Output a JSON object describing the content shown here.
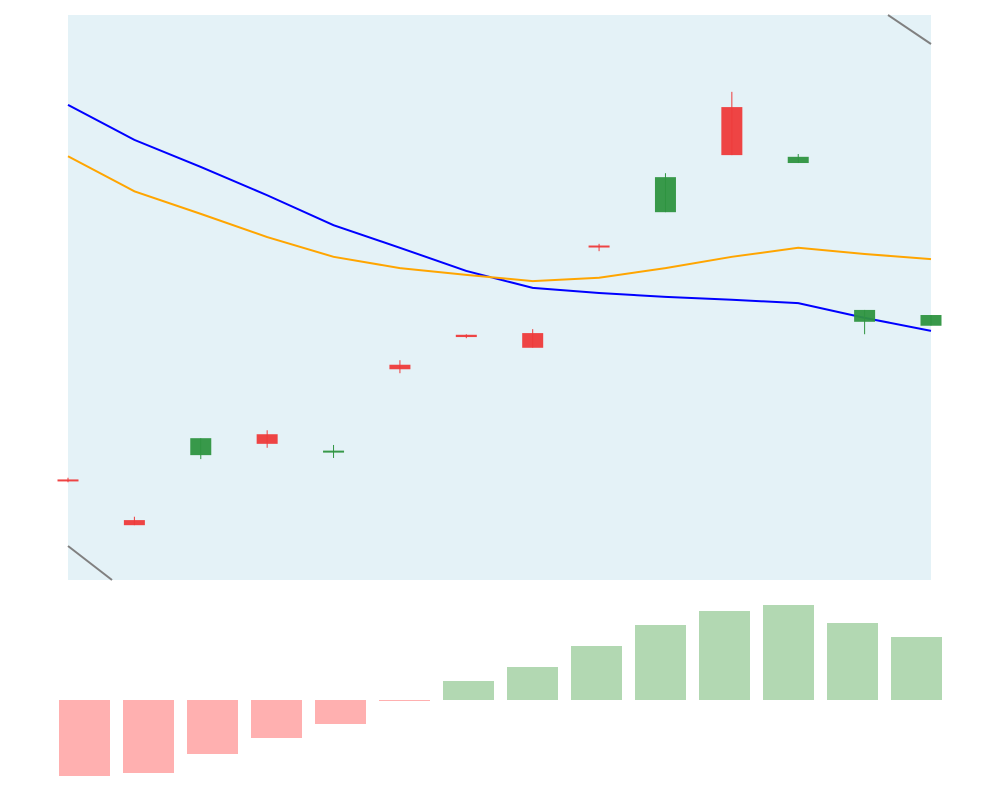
{
  "chart_data": [
    {
      "type": "candlestick",
      "open": [
        17.8,
        10.6,
        22.1,
        25.8,
        22.8,
        38.1,
        43.4,
        43.7,
        59.2,
        65.1,
        83.7,
        73.8,
        45.7,
        45.0
      ],
      "high": [
        18.1,
        11.2,
        25.1,
        26.5,
        23.9,
        38.9,
        43.5,
        44.4,
        59.5,
        72.0,
        86.4,
        75.4,
        47.8,
        46.9
      ],
      "low": [
        17.3,
        9.7,
        21.4,
        23.4,
        21.6,
        36.6,
        42.8,
        41.1,
        58.2,
        65.1,
        75.2,
        73.8,
        43.5,
        45.0
      ],
      "close": [
        17.6,
        9.7,
        25.1,
        24.1,
        22.9,
        37.3,
        43.0,
        41.1,
        59.0,
        71.3,
        75.2,
        74.9,
        47.8,
        46.9
      ],
      "up_color": "#2e9440",
      "down_color": "#ee3a3a",
      "series": [
        {
          "color": "#0000ff",
          "values": [
            84.1,
            77.9,
            73.1,
            68.1,
            62.8,
            58.8,
            54.7,
            51.7,
            50.8,
            50.1,
            49.6,
            49.0,
            46.4,
            44.1
          ]
        },
        {
          "color": "#ffa500",
          "values": [
            75.0,
            68.8,
            64.8,
            60.7,
            57.2,
            55.2,
            54.0,
            52.9,
            53.5,
            55.2,
            57.2,
            58.8,
            57.7,
            56.8
          ]
        }
      ],
      "ylim": [
        0,
        100
      ],
      "background": "#e4f2f7"
    },
    {
      "type": "bar",
      "values": [
        -76,
        -73,
        -54,
        -38,
        -24,
        -1,
        19,
        33,
        54,
        75,
        89,
        95,
        77,
        63
      ],
      "positive_color": "#b2d8b2",
      "negative_color": "#ffb0b0",
      "ylim": [
        -80,
        100
      ]
    }
  ]
}
